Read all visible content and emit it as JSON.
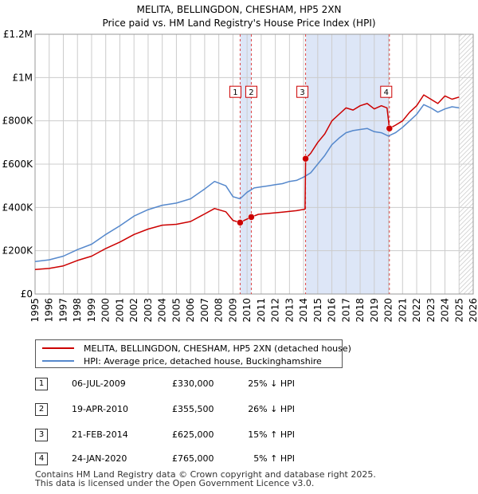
{
  "chart_data": {
    "type": "line",
    "title": "MELITA, BELLINGDON, CHESHAM, HP5 2XN",
    "subtitle": "Price paid vs. HM Land Registry's House Price Index (HPI)",
    "xlabel": "",
    "ylabel": "",
    "xlim": [
      1995,
      2026
    ],
    "ylim": [
      0,
      1200000
    ],
    "yticks": [
      0,
      200000,
      400000,
      600000,
      800000,
      1000000,
      1200000
    ],
    "ytick_labels": [
      "£0",
      "£200K",
      "£400K",
      "£600K",
      "£800K",
      "£1M",
      "£1.2M"
    ],
    "xticks": [
      1995,
      1996,
      1997,
      1998,
      1999,
      2000,
      2001,
      2002,
      2003,
      2004,
      2005,
      2006,
      2007,
      2008,
      2009,
      2010,
      2011,
      2012,
      2013,
      2014,
      2015,
      2016,
      2017,
      2018,
      2019,
      2020,
      2021,
      2022,
      2023,
      2024,
      2025,
      2026
    ],
    "grid": true,
    "forecast_from": 2025.0,
    "shaded_ranges": [
      [
        2009.51,
        2010.3
      ],
      [
        2014.14,
        2020.07
      ]
    ],
    "series": [
      {
        "name": "MELITA, BELLINGDON, CHESHAM, HP5 2XN (detached house)",
        "color": "#cc0000",
        "x": [
          1995.0,
          1996.0,
          1997.0,
          1998.0,
          1999.0,
          2000.0,
          2001.0,
          2002.0,
          2003.0,
          2004.0,
          2005.0,
          2006.0,
          2007.0,
          2007.7,
          2008.5,
          2009.0,
          2009.51,
          2009.8,
          2010.3,
          2010.8,
          2011.5,
          2012.5,
          2013.5,
          2014.1,
          2014.14,
          2014.5,
          2015.0,
          2015.5,
          2016.0,
          2016.5,
          2017.0,
          2017.5,
          2018.0,
          2018.5,
          2019.0,
          2019.5,
          2019.9,
          2020.07,
          2020.5,
          2021.0,
          2021.5,
          2022.0,
          2022.5,
          2023.0,
          2023.5,
          2024.0,
          2024.5,
          2025.0
        ],
        "values": [
          113000,
          118000,
          130000,
          155000,
          175000,
          210000,
          240000,
          275000,
          300000,
          318000,
          322000,
          335000,
          370000,
          395000,
          380000,
          340000,
          330000,
          340000,
          355500,
          368000,
          372000,
          378000,
          385000,
          392000,
          625000,
          650000,
          700000,
          740000,
          800000,
          830000,
          860000,
          850000,
          870000,
          880000,
          855000,
          870000,
          860000,
          765000,
          780000,
          800000,
          840000,
          870000,
          920000,
          900000,
          880000,
          915000,
          900000,
          910000
        ]
      },
      {
        "name": "HPI: Average price, detached house, Buckinghamshire",
        "color": "#5588cc",
        "x": [
          1995.0,
          1996.0,
          1997.0,
          1998.0,
          1999.0,
          2000.0,
          2001.0,
          2002.0,
          2003.0,
          2004.0,
          2005.0,
          2006.0,
          2007.0,
          2007.7,
          2008.5,
          2009.0,
          2009.5,
          2010.0,
          2010.5,
          2011.0,
          2011.5,
          2012.0,
          2012.5,
          2013.0,
          2013.5,
          2014.0,
          2014.5,
          2015.0,
          2015.5,
          2016.0,
          2016.5,
          2017.0,
          2017.5,
          2018.0,
          2018.5,
          2019.0,
          2019.5,
          2020.0,
          2020.5,
          2021.0,
          2021.5,
          2022.0,
          2022.5,
          2023.0,
          2023.5,
          2024.0,
          2024.5,
          2025.0
        ],
        "values": [
          150000,
          158000,
          175000,
          205000,
          230000,
          275000,
          315000,
          360000,
          390000,
          410000,
          420000,
          440000,
          485000,
          520000,
          500000,
          450000,
          440000,
          470000,
          490000,
          495000,
          500000,
          505000,
          510000,
          520000,
          525000,
          540000,
          560000,
          600000,
          640000,
          690000,
          720000,
          745000,
          755000,
          760000,
          765000,
          750000,
          745000,
          730000,
          745000,
          770000,
          800000,
          830000,
          875000,
          860000,
          840000,
          855000,
          865000,
          860000
        ]
      }
    ],
    "markers": [
      {
        "label": "1",
        "x": 2009.51,
        "y": 330000
      },
      {
        "label": "2",
        "x": 2010.3,
        "y": 355500
      },
      {
        "label": "3",
        "x": 2014.14,
        "y": 625000
      },
      {
        "label": "4",
        "x": 2020.07,
        "y": 765000
      }
    ],
    "marker_label_y": 960000
  },
  "legend": {
    "property": "MELITA, BELLINGDON, CHESHAM, HP5 2XN (detached house)",
    "hpi": "HPI: Average price, detached house, Buckinghamshire"
  },
  "sales": [
    {
      "num": "1",
      "date": "06-JUL-2009",
      "price": "£330,000",
      "hpi": "25% ↓ HPI"
    },
    {
      "num": "2",
      "date": "19-APR-2010",
      "price": "£355,500",
      "hpi": "26% ↓ HPI"
    },
    {
      "num": "3",
      "date": "21-FEB-2014",
      "price": "£625,000",
      "hpi": "15% ↑ HPI"
    },
    {
      "num": "4",
      "date": "24-JAN-2020",
      "price": "£765,000",
      "hpi": "5% ↑ HPI"
    }
  ],
  "footer": {
    "line1": "Contains HM Land Registry data © Crown copyright and database right 2025.",
    "line2": "This data is licensed under the Open Government Licence v3.0."
  },
  "colors": {
    "property": "#cc0000",
    "hpi": "#5588cc",
    "shade": "#dde6f7",
    "grid": "#cccccc"
  }
}
